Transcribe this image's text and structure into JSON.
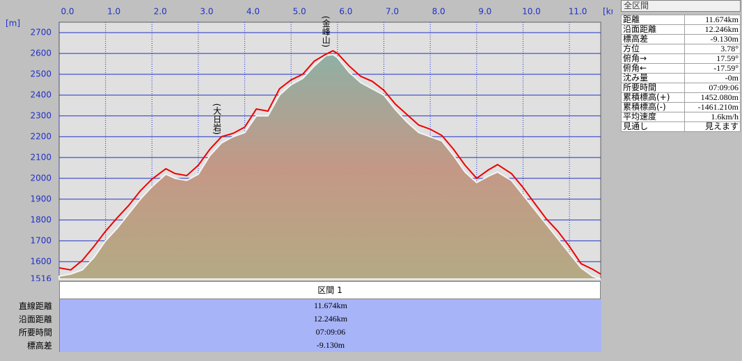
{
  "chart_data": {
    "type": "line",
    "x_unit": "[km]",
    "y_unit": "[m]",
    "x": [
      0,
      0.25,
      0.5,
      0.75,
      1.0,
      1.25,
      1.5,
      1.75,
      2.0,
      2.3,
      2.5,
      2.75,
      3.0,
      3.25,
      3.5,
      3.75,
      4.0,
      4.25,
      4.5,
      4.75,
      5.0,
      5.25,
      5.5,
      5.75,
      5.9,
      6.0,
      6.25,
      6.5,
      6.75,
      7.0,
      7.25,
      7.5,
      7.75,
      8.0,
      8.25,
      8.5,
      8.75,
      9.0,
      9.25,
      9.45,
      9.75,
      10.0,
      10.25,
      10.5,
      10.75,
      11.0,
      11.25,
      11.5,
      11.674
    ],
    "series": [
      {
        "type": "area",
        "color": "#8fb0a4",
        "color2": "#b4aa84",
        "values": [
          1530,
          1540,
          1560,
          1620,
          1700,
          1760,
          1830,
          1900,
          1960,
          2020,
          2000,
          1990,
          2020,
          2110,
          2170,
          2200,
          2220,
          2300,
          2300,
          2400,
          2450,
          2480,
          2540,
          2590,
          2595,
          2580,
          2510,
          2460,
          2430,
          2400,
          2330,
          2270,
          2220,
          2200,
          2180,
          2110,
          2030,
          1980,
          2010,
          2030,
          1990,
          1920,
          1850,
          1780,
          1710,
          1640,
          1570,
          1530,
          1516
        ]
      },
      {
        "type": "line",
        "color": "#ee0000",
        "values": [
          1570,
          1560,
          1606,
          1673,
          1746,
          1810,
          1870,
          1940,
          1996,
          2046,
          2023,
          2013,
          2063,
          2140,
          2200,
          2216,
          2246,
          2333,
          2323,
          2430,
          2473,
          2500,
          2563,
          2596,
          2613,
          2600,
          2540,
          2490,
          2466,
          2423,
          2356,
          2306,
          2256,
          2236,
          2206,
          2140,
          2063,
          2000,
          2040,
          2066,
          2023,
          1956,
          1880,
          1806,
          1746,
          1673,
          1590,
          1563,
          1540
        ]
      }
    ],
    "annotations": [
      {
        "text": "(金峰山)",
        "x": 5.75
      },
      {
        "text": "(大日岩)",
        "x": 3.4
      }
    ],
    "xlim": [
      0,
      11.674
    ],
    "xticks": [
      {
        "value": 0,
        "label": "0.0"
      },
      {
        "value": 1,
        "label": "1.0"
      },
      {
        "value": 2,
        "label": "2.0"
      },
      {
        "value": 3,
        "label": "3.0"
      },
      {
        "value": 4,
        "label": "4.0"
      },
      {
        "value": 5,
        "label": "5.0"
      },
      {
        "value": 6,
        "label": "6.0"
      },
      {
        "value": 7,
        "label": "7.0"
      },
      {
        "value": 8,
        "label": "8.0"
      },
      {
        "value": 9,
        "label": "9.0"
      },
      {
        "value": 10,
        "label": "10.0"
      },
      {
        "value": 11,
        "label": "11.0"
      }
    ],
    "ylim": [
      1516,
      2750
    ],
    "yticks": [
      1516,
      1600,
      1700,
      1800,
      1900,
      2000,
      2100,
      2200,
      2300,
      2400,
      2500,
      2600,
      2700
    ],
    "grid": true,
    "grid_color": "#2030c8"
  },
  "side_panel": {
    "title": "全区間",
    "rows": [
      [
        "距離",
        "11.674km"
      ],
      [
        "沿面距離",
        "12.246km"
      ],
      [
        "標高差",
        "-9.130m"
      ],
      [
        "方位",
        "3.78°"
      ],
      [
        "俯角→",
        "17.59°"
      ],
      [
        "俯角←",
        "-17.59°"
      ],
      [
        "沈み量",
        "-0m"
      ],
      [
        "所要時間",
        "07:09:06"
      ],
      [
        "累積標高(+)",
        "1452.080m"
      ],
      [
        "累積標高(-)",
        "-1461.210m"
      ],
      [
        "平均速度",
        "1.6km/h"
      ],
      [
        "見通し",
        "見えます"
      ]
    ]
  },
  "table": {
    "header": "区間 1",
    "rows": [
      [
        "直線距離",
        "11.674km"
      ],
      [
        "沿面距離",
        "12.246km"
      ],
      [
        "所要時間",
        "07:09:06"
      ],
      [
        "標高差",
        "-9.130m"
      ]
    ]
  }
}
